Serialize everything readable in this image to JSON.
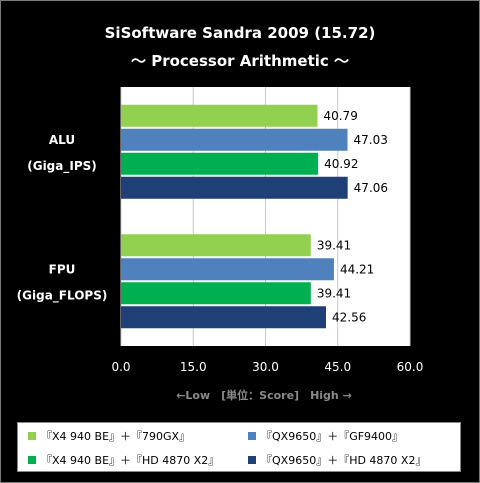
{
  "chart_data": {
    "type": "bar",
    "orientation": "horizontal",
    "title": "SiSoftware Sandra 2009 (15.72)",
    "subtitle": "～ Processor Arithmetic ～",
    "categories": [
      "ALU\n(Giga_IPS)",
      "FPU\n(Giga_FLOPS)"
    ],
    "series": [
      {
        "name": "『X4 940 BE』＋『790GX』",
        "color": "#92d050",
        "values": [
          40.79,
          39.41
        ]
      },
      {
        "name": "『QX9650』＋『GF9400』",
        "color": "#4f81bd",
        "values": [
          47.03,
          44.21
        ]
      },
      {
        "name": "『X4 940 BE』＋『HD 4870 X2』",
        "color": "#00b050",
        "values": [
          40.92,
          39.41
        ]
      },
      {
        "name": "『QX9650』＋『HD 4870 X2』",
        "color": "#1f3f77",
        "values": [
          47.06,
          42.56
        ]
      }
    ],
    "xlim": [
      0,
      60
    ],
    "xticks": [
      "0.0",
      "15.0",
      "30.0",
      "45.0",
      "60.0"
    ],
    "xlabel": "←Low　[単位：Score]　High →",
    "grid": true,
    "legend_position": "bottom"
  }
}
